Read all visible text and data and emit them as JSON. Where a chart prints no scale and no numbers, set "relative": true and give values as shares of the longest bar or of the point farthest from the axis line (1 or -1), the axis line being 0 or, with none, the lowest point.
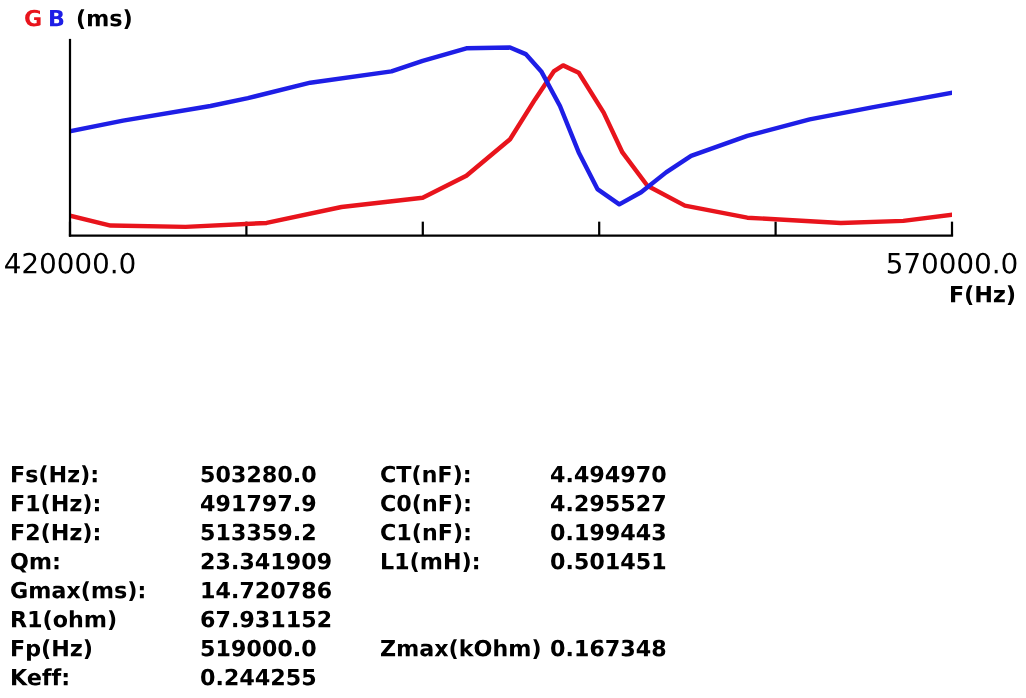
{
  "chart_data": {
    "type": "line",
    "relative": true,
    "ylabel": "(ms)",
    "xlabel": "F(Hz)",
    "legend": "top left",
    "xlim": [
      420000,
      570000
    ],
    "xticks": [
      {
        "value": 420000,
        "label": "420000.0"
      },
      {
        "value": 450000,
        "label": null
      },
      {
        "value": 480000,
        "label": null
      },
      {
        "value": 510000,
        "label": null
      },
      {
        "value": 540000,
        "label": null
      },
      {
        "value": 570000,
        "label": "570000.0"
      }
    ],
    "series": [
      {
        "name": "G",
        "color": "#e8141c",
        "x": [
          420000,
          426900,
          439640,
          453440,
          466180,
          479980,
          487410,
          494840,
          499090,
          502270,
          503860,
          506520,
          510760,
          513950,
          518200,
          524570,
          535180,
          551100,
          561720,
          570000
        ],
        "values": [
          0.106,
          0.053,
          0.046,
          0.067,
          0.152,
          0.201,
          0.318,
          0.512,
          0.724,
          0.873,
          0.905,
          0.866,
          0.654,
          0.442,
          0.265,
          0.159,
          0.095,
          0.067,
          0.078,
          0.11
        ]
      },
      {
        "name": "B",
        "color": "#1e1ee6",
        "x": [
          420000,
          429020,
          443890,
          450260,
          460870,
          474670,
          479980,
          487410,
          494840,
          497500,
          500150,
          503330,
          506520,
          509700,
          513420,
          517130,
          521380,
          525630,
          535180,
          545800,
          556410,
          570000
        ],
        "values": [
          0.555,
          0.611,
          0.689,
          0.731,
          0.813,
          0.873,
          0.929,
          0.996,
          1.0,
          0.965,
          0.873,
          0.689,
          0.442,
          0.247,
          0.166,
          0.23,
          0.336,
          0.424,
          0.53,
          0.618,
          0.682,
          0.76
        ]
      }
    ],
    "annotations": [
      "Fs(Hz):",
      "503280.0",
      "F1(Hz):",
      "491797.9",
      "F2(Hz):",
      "513359.2",
      "Qm:",
      "23.341909",
      "Gmax(ms):",
      "14.720786",
      "R1(ohm)",
      "67.931152",
      "Fp(Hz)",
      "519000.0",
      "Keff:",
      "0.244255",
      "CT(nF):",
      "4.494970",
      "C0(nF):",
      "4.295527",
      "C1(nF):",
      "0.199443",
      "L1(mH):",
      "0.501451",
      "Zmax(kOhm)",
      "0.167348"
    ]
  }
}
